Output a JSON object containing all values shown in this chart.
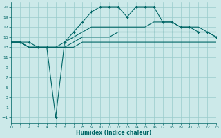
{
  "xlabel": "Humidex (Indice chaleur)",
  "xlim": [
    0,
    23
  ],
  "ylim": [
    -2,
    22
  ],
  "yticks": [
    -1,
    1,
    3,
    5,
    7,
    9,
    11,
    13,
    15,
    17,
    19,
    21
  ],
  "xticks": [
    0,
    1,
    2,
    3,
    4,
    5,
    6,
    7,
    8,
    9,
    10,
    11,
    12,
    13,
    14,
    15,
    16,
    17,
    18,
    19,
    20,
    21,
    22,
    23
  ],
  "bg_color": "#cce9e9",
  "line_color": "#006666",
  "grid_color": "#99cccc",
  "lines": {
    "max": {
      "x": [
        0,
        1,
        2,
        3,
        4,
        5,
        6,
        7,
        8,
        9,
        10,
        11,
        12,
        13,
        14,
        15,
        16,
        17,
        18,
        19,
        20,
        21,
        22,
        23
      ],
      "y": [
        14,
        14,
        14,
        13,
        13,
        -1,
        14,
        16,
        18,
        20,
        21,
        21,
        21,
        19,
        21,
        21,
        21,
        18,
        18,
        17,
        17,
        16,
        16,
        15
      ],
      "marker": true
    },
    "p75": {
      "x": [
        0,
        1,
        2,
        3,
        4,
        5,
        6,
        7,
        8,
        9,
        10,
        11,
        12,
        13,
        14,
        15,
        16,
        17,
        18,
        19,
        20,
        21,
        22,
        23
      ],
      "y": [
        14,
        14,
        13,
        13,
        13,
        13,
        14,
        15,
        16,
        17,
        17,
        17,
        17,
        17,
        17,
        17,
        18,
        18,
        18,
        17,
        17,
        17,
        16,
        16
      ],
      "marker": false
    },
    "mean": {
      "x": [
        0,
        1,
        2,
        3,
        4,
        5,
        6,
        7,
        8,
        9,
        10,
        11,
        12,
        13,
        14,
        15,
        16,
        17,
        18,
        19,
        20,
        21,
        22,
        23
      ],
      "y": [
        14,
        14,
        13,
        13,
        13,
        13,
        13,
        14,
        15,
        15,
        15,
        15,
        16,
        16,
        16,
        16,
        16,
        16,
        16,
        16,
        16,
        16,
        16,
        15
      ],
      "marker": false
    },
    "min": {
      "x": [
        0,
        1,
        2,
        3,
        4,
        5,
        6,
        7,
        8,
        9,
        10,
        11,
        12,
        13,
        14,
        15,
        16,
        17,
        18,
        19,
        20,
        21,
        22,
        23
      ],
      "y": [
        14,
        14,
        13,
        13,
        13,
        13,
        13,
        13,
        14,
        14,
        14,
        14,
        14,
        14,
        14,
        14,
        14,
        14,
        14,
        14,
        14,
        14,
        14,
        14
      ],
      "marker": false
    }
  }
}
